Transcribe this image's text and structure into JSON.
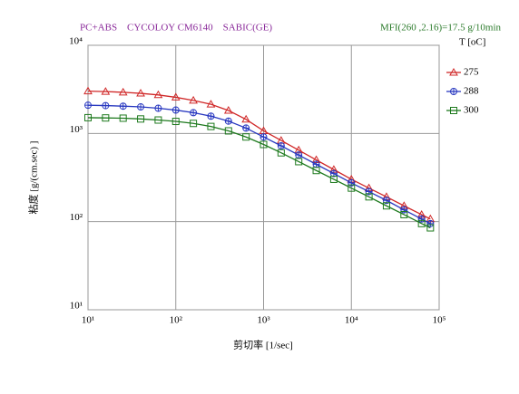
{
  "chart_data": {
    "type": "line",
    "title": "PC+ABS　CYCOLOY CM6140　SABIC(GE)",
    "subtitle": "MFI(260 ,2.16)=17.5 g/10min",
    "x_label": "剪切率 [1/sec]",
    "y_label": "粘度 [g/(cm.sec) ]",
    "legend_title": "T [oC]",
    "xscale": "log",
    "yscale": "log",
    "grid": true,
    "legend": "right",
    "x": [
      10,
      15.85,
      25.12,
      39.81,
      63.1,
      100,
      158.5,
      251.2,
      398.1,
      631,
      1000,
      1585,
      2512,
      3981,
      6310,
      10000,
      15850,
      25120,
      39810,
      63100,
      79430
    ],
    "series": [
      {
        "name": "275",
        "color": "#d02828",
        "marker": "triangle",
        "values": [
          3020,
          2985,
          2930,
          2850,
          2735,
          2570,
          2370,
          2140,
          1820,
          1445,
          1070,
          832,
          646,
          501,
          389,
          302,
          240,
          191,
          151,
          120,
          107
        ]
      },
      {
        "name": "288",
        "color": "#2838c0",
        "marker": "circle",
        "values": [
          2090,
          2070,
          2040,
          2000,
          1930,
          1840,
          1720,
          1570,
          1380,
          1150,
          912,
          724,
          569,
          447,
          351,
          275,
          219,
          174,
          136,
          107,
          95
        ]
      },
      {
        "name": "300",
        "color": "#1e7a1e",
        "marker": "square",
        "values": [
          1510,
          1500,
          1490,
          1460,
          1420,
          1370,
          1300,
          1200,
          1070,
          912,
          750,
          603,
          479,
          380,
          302,
          240,
          191,
          151,
          120,
          95,
          85
        ]
      }
    ],
    "xlim": [
      10,
      100000
    ],
    "ylim": [
      10,
      10000
    ],
    "xticks": [
      {
        "value": 10,
        "label": "10¹"
      },
      {
        "value": 100,
        "label": "10²"
      },
      {
        "value": 1000,
        "label": "10³"
      },
      {
        "value": 10000,
        "label": "10⁴"
      },
      {
        "value": 100000,
        "label": "10⁵"
      }
    ],
    "yticks": [
      {
        "value": 10,
        "label": "10¹"
      },
      {
        "value": 100,
        "label": "10²"
      },
      {
        "value": 1000,
        "label": "10³"
      },
      {
        "value": 10000,
        "label": "10⁴"
      }
    ]
  }
}
